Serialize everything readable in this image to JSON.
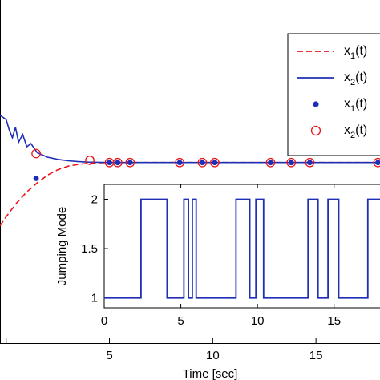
{
  "chart_data": [
    {
      "type": "line",
      "xlabel": "Time [sec]",
      "ylabel": "",
      "xlim": [
        -0.3,
        18.1
      ],
      "ylim": [
        -4.0,
        3.6
      ],
      "xticks": [
        0,
        5,
        10,
        15
      ],
      "xtick_labels": [
        "",
        "5",
        "10",
        "15"
      ],
      "legend_position": "top-right",
      "series": [
        {
          "name": "x1(t)",
          "legend_main": "x",
          "legend_sub": "1",
          "legend_suffix": "(t)",
          "style": "dashed",
          "color": "#e8141a",
          "x": [
            -0.3,
            0.0,
            0.5,
            1.0,
            1.5,
            2.0,
            2.5,
            3.0,
            3.5,
            4.0,
            4.5,
            5.0,
            6.0,
            8.0,
            10.0,
            12.0,
            14.0,
            16.0,
            18.1
          ],
          "y": [
            -1.4,
            -1.2,
            -0.9,
            -0.65,
            -0.45,
            -0.28,
            -0.16,
            -0.08,
            -0.04,
            -0.015,
            -0.005,
            0.0,
            0.0,
            0.0,
            0.0,
            0.0,
            0.0,
            0.0,
            0.0
          ]
        },
        {
          "name": "x2(t)",
          "legend_main": "x",
          "legend_sub": "2",
          "legend_suffix": "(t)",
          "style": "solid",
          "color": "#1f2fb5",
          "x": [
            -0.3,
            0.0,
            0.15,
            0.3,
            0.45,
            0.6,
            0.8,
            1.0,
            1.2,
            1.5,
            2.0,
            2.5,
            3.0,
            3.5,
            4.0,
            5.0,
            6.0,
            8.0,
            10.0,
            12.0,
            14.0,
            16.0,
            18.1
          ],
          "y": [
            1.05,
            0.95,
            0.72,
            0.55,
            0.78,
            0.45,
            0.62,
            0.35,
            0.42,
            0.22,
            0.12,
            0.07,
            0.04,
            0.02,
            0.01,
            0.0,
            0.0,
            0.0,
            0.0,
            0.0,
            0.0,
            0.0,
            0.0
          ]
        },
        {
          "name": "x1(t) jump",
          "legend_main": "x",
          "legend_sub": "1",
          "legend_suffix": "(t)",
          "style": "dot",
          "color": "#1f2fb5",
          "x": [
            1.45,
            5.0,
            5.4,
            6.0,
            8.4,
            9.5,
            10.1,
            12.8,
            13.8,
            14.7,
            18.0
          ],
          "y": [
            -0.35,
            0.0,
            0.0,
            0.0,
            0.0,
            0.0,
            0.0,
            0.0,
            0.0,
            0.0,
            0.0
          ]
        },
        {
          "name": "x2(t) jump",
          "legend_main": "x",
          "legend_sub": "2",
          "legend_suffix": "(t)",
          "style": "circle",
          "color": "#e8141a",
          "x": [
            1.45,
            4.05,
            5.0,
            5.4,
            6.0,
            8.4,
            9.5,
            10.1,
            12.8,
            13.8,
            14.7,
            18.0
          ],
          "y": [
            0.2,
            0.05,
            0.0,
            0.0,
            0.0,
            0.0,
            0.0,
            0.0,
            0.0,
            0.0,
            0.0,
            0.0
          ]
        }
      ]
    },
    {
      "type": "line",
      "title": "",
      "xlabel": "",
      "ylabel": "Jumping Mode",
      "xlim": [
        0,
        18.1
      ],
      "ylim": [
        0.9,
        2.15
      ],
      "xticks": [
        0,
        5,
        10,
        15
      ],
      "xtick_labels": [
        "0",
        "5",
        "10",
        "15"
      ],
      "yticks": [
        1,
        1.5,
        2
      ],
      "ytick_labels": [
        "1",
        "1.5",
        "2"
      ],
      "series": [
        {
          "style": "step",
          "color": "#1f2fb5",
          "x": [
            0,
            2.4,
            2.4,
            4.1,
            4.1,
            5.2,
            5.2,
            5.5,
            5.5,
            5.75,
            5.75,
            6.0,
            6.0,
            8.6,
            8.6,
            9.5,
            9.5,
            9.9,
            9.9,
            10.4,
            10.4,
            13.3,
            13.3,
            13.95,
            13.95,
            14.6,
            14.6,
            15.3,
            15.3,
            17.2,
            17.2,
            18.1
          ],
          "y": [
            1,
            1,
            2,
            2,
            1,
            1,
            2,
            2,
            1,
            1,
            2,
            2,
            1,
            1,
            2,
            2,
            1,
            1,
            2,
            2,
            1,
            1,
            2,
            2,
            1,
            1,
            2,
            2,
            1,
            1,
            2,
            2
          ]
        }
      ]
    }
  ]
}
